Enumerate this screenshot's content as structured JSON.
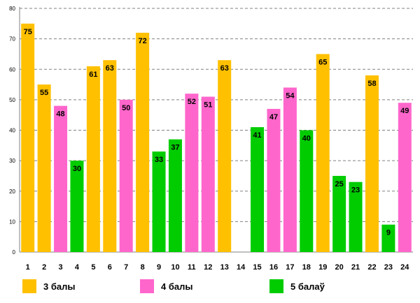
{
  "chart_data": {
    "type": "bar",
    "title": "",
    "xlabel": "",
    "ylabel": "",
    "ylim": [
      0,
      80
    ],
    "yticks": [
      "0",
      "10",
      "20",
      "30",
      "40",
      "50",
      "60",
      "70",
      "80"
    ],
    "categories": [
      "1",
      "2",
      "3",
      "4",
      "5",
      "6",
      "7",
      "8",
      "9",
      "10",
      "11",
      "12",
      "13",
      "14",
      "15",
      "16",
      "17",
      "18",
      "19",
      "20",
      "21",
      "22",
      "23",
      "24"
    ],
    "values": [
      75,
      55,
      48,
      30,
      61,
      63,
      50,
      72,
      33,
      37,
      52,
      51,
      63,
      null,
      41,
      47,
      54,
      40,
      65,
      25,
      23,
      58,
      9,
      49
    ],
    "value_labels": [
      "75",
      "55",
      "48",
      "30",
      "61",
      "63",
      "50",
      "72",
      "33",
      "37",
      "52",
      "51",
      "63",
      "",
      "41",
      "47",
      "54",
      "40",
      "65",
      "25",
      "23",
      "58",
      "9",
      "49"
    ],
    "groups": [
      "g3",
      "g3",
      "g4",
      "g5",
      "g3",
      "g3",
      "g4",
      "g3",
      "g5",
      "g5",
      "g4",
      "g4",
      "g3",
      null,
      "g5",
      "g4",
      "g4",
      "g5",
      "g3",
      "g5",
      "g5",
      "g3",
      "g5",
      "g4"
    ],
    "grid": true
  },
  "legend": [
    {
      "key": "g3",
      "label": "3 балы",
      "color": "#FFC000"
    },
    {
      "key": "g4",
      "label": "4 балы",
      "color": "#FF66CC"
    },
    {
      "key": "g5",
      "label": "5 балаў",
      "color": "#00CC00"
    }
  ]
}
